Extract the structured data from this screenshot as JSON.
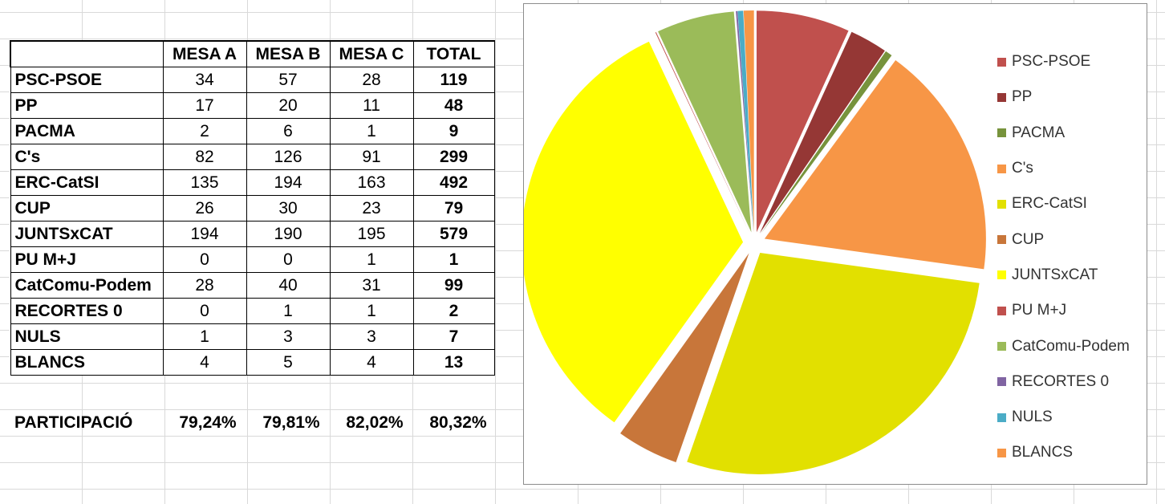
{
  "table": {
    "headers": [
      "",
      "MESA A",
      "MESA B",
      "MESA C",
      "TOTAL"
    ],
    "rows": [
      {
        "party": "PSC-PSOE",
        "a": "34",
        "b": "57",
        "c": "28",
        "total": "119"
      },
      {
        "party": "PP",
        "a": "17",
        "b": "20",
        "c": "11",
        "total": "48"
      },
      {
        "party": "PACMA",
        "a": "2",
        "b": "6",
        "c": "1",
        "total": "9"
      },
      {
        "party": "C's",
        "a": "82",
        "b": "126",
        "c": "91",
        "total": "299"
      },
      {
        "party": "ERC-CatSI",
        "a": "135",
        "b": "194",
        "c": "163",
        "total": "492"
      },
      {
        "party": "CUP",
        "a": "26",
        "b": "30",
        "c": "23",
        "total": "79"
      },
      {
        "party": "JUNTSxCAT",
        "a": "194",
        "b": "190",
        "c": "195",
        "total": "579"
      },
      {
        "party": "PU M+J",
        "a": "0",
        "b": "0",
        "c": "1",
        "total": "1"
      },
      {
        "party": "CatComu-Podem",
        "a": "28",
        "b": "40",
        "c": "31",
        "total": "99"
      },
      {
        "party": "RECORTES 0",
        "a": "0",
        "b": "1",
        "c": "1",
        "total": "2"
      },
      {
        "party": "NULS",
        "a": "1",
        "b": "3",
        "c": "3",
        "total": "7"
      },
      {
        "party": "BLANCS",
        "a": "4",
        "b": "5",
        "c": "4",
        "total": "13"
      }
    ],
    "participation": {
      "label": "PARTICIPACIÓ",
      "a": "79,24%",
      "b": "79,81%",
      "c": "82,02%",
      "total": "80,32%"
    }
  },
  "chart_data": {
    "type": "pie",
    "title": "",
    "categories": [
      "PSC-PSOE",
      "PP",
      "PACMA",
      "C's",
      "ERC-CatSI",
      "CUP",
      "JUNTSxCAT",
      "PU M+J",
      "CatComu-Podem",
      "RECORTES 0",
      "NULS",
      "BLANCS"
    ],
    "values": [
      119,
      48,
      9,
      299,
      492,
      79,
      579,
      1,
      99,
      2,
      7,
      13
    ],
    "colors": [
      "#c0504d",
      "#953735",
      "#77933c",
      "#f79646",
      "#e2e000",
      "#c8763a",
      "#ffff00",
      "#c0504d",
      "#9bbb59",
      "#8064a2",
      "#4bacc6",
      "#f79646"
    ],
    "legend_position": "right",
    "exploded": true
  }
}
